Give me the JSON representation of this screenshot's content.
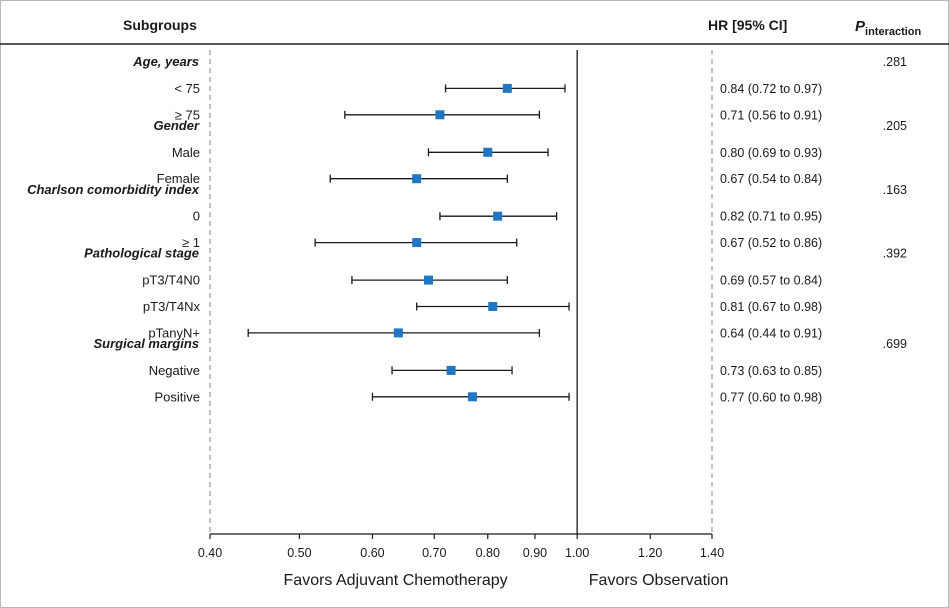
{
  "chart_data": {
    "type": "forest",
    "headers": {
      "subgroups": "Subgroups",
      "hr": "HR [95% CI]",
      "p_main": "P",
      "p_sub": "interaction"
    },
    "groups": [
      {
        "label": "Age, years",
        "p": ".281",
        "rows": [
          {
            "label": "< 75",
            "hr": 0.84,
            "lo": 0.72,
            "hi": 0.97,
            "text": "0.84 (0.72 to 0.97)"
          },
          {
            "label": "≥ 75",
            "hr": 0.71,
            "lo": 0.56,
            "hi": 0.91,
            "text": "0.71 (0.56 to 0.91)"
          }
        ]
      },
      {
        "label": "Gender",
        "p": ".205",
        "rows": [
          {
            "label": "Male",
            "hr": 0.8,
            "lo": 0.69,
            "hi": 0.93,
            "text": "0.80 (0.69 to 0.93)"
          },
          {
            "label": "Female",
            "hr": 0.67,
            "lo": 0.54,
            "hi": 0.84,
            "text": "0.67 (0.54 to 0.84)"
          }
        ]
      },
      {
        "label": "Charlson comorbidity index",
        "p": ".163",
        "rows": [
          {
            "label": "0",
            "hr": 0.82,
            "lo": 0.71,
            "hi": 0.95,
            "text": "0.82 (0.71 to 0.95)"
          },
          {
            "label": "≥ 1",
            "hr": 0.67,
            "lo": 0.52,
            "hi": 0.86,
            "text": "0.67 (0.52 to 0.86)"
          }
        ]
      },
      {
        "label": "Pathological stage",
        "p": ".392",
        "rows": [
          {
            "label": "pT3/T4N0",
            "hr": 0.69,
            "lo": 0.57,
            "hi": 0.84,
            "text": "0.69 (0.57 to 0.84)"
          },
          {
            "label": "pT3/T4Nx",
            "hr": 0.81,
            "lo": 0.67,
            "hi": 0.98,
            "text": "0.81 (0.67 to 0.98)"
          },
          {
            "label": "pTanyN+",
            "hr": 0.64,
            "lo": 0.44,
            "hi": 0.91,
            "text": "0.64 (0.44 to 0.91)"
          }
        ]
      },
      {
        "label": "Surgical margins",
        "p": ".699",
        "rows": [
          {
            "label": "Negative",
            "hr": 0.73,
            "lo": 0.63,
            "hi": 0.85,
            "text": "0.73 (0.63 to 0.85)"
          },
          {
            "label": "Positive",
            "hr": 0.77,
            "lo": 0.6,
            "hi": 0.98,
            "text": "0.77 (0.60 to 0.98)"
          }
        ]
      }
    ],
    "x_ticks": [
      0.4,
      0.5,
      0.6,
      0.7,
      0.8,
      0.9,
      1.0,
      1.2,
      1.4
    ],
    "x_tick_labels": [
      "0.40",
      "0.50",
      "0.60",
      "0.70",
      "0.80",
      "0.90",
      "1.00",
      "1.20",
      "1.40"
    ],
    "xlim": [
      0.4,
      1.4
    ],
    "x_scale": "log",
    "reference_line": 1.0,
    "favor_left": "Favors Adjuvant Chemotherapy",
    "favor_right": "Favors Observation",
    "marker_color": "#1f77c4"
  }
}
